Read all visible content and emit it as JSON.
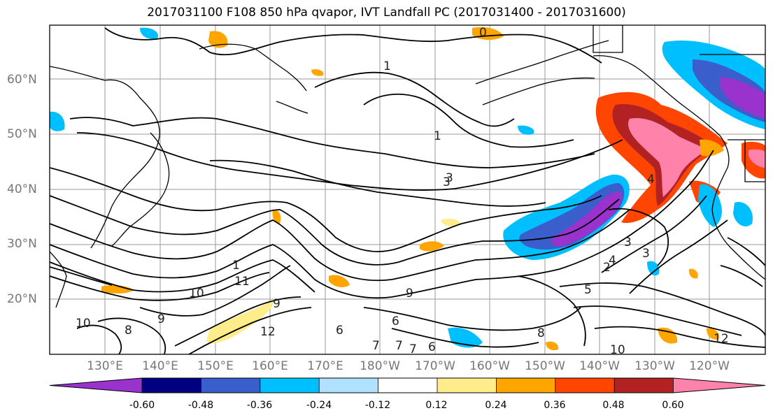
{
  "title": "2017031100 F108 850 hPa qvapor, IVT Landfall PC (2017031400 - 2017031600)",
  "lat_labels": [
    "60°N",
    "50°N",
    "40°N",
    "30°N",
    "20°N"
  ],
  "lon_labels": [
    "130°E",
    "140°E",
    "150°E",
    "160°E",
    "170°E",
    "180°W",
    "170°W",
    "160°W",
    "150°W",
    "140°W",
    "130°W",
    "120°W"
  ],
  "colorbar": {
    "ticks": [
      "-0.60",
      "-0.48",
      "-0.36",
      "-0.24",
      "-0.12",
      "0.12",
      "0.24",
      "0.36",
      "0.48",
      "0.60"
    ],
    "colors": [
      "#9a32cd",
      "#000080",
      "#3a5fcd",
      "#00bfff",
      "#b0e2ff",
      "#ffffff",
      "#ffec8b",
      "#ffa500",
      "#ff4500",
      "#b22222",
      "#ff82ab"
    ]
  },
  "contour_labels": [
    "0",
    "1",
    "1",
    "1",
    "3",
    "3",
    "3",
    "3",
    "4",
    "4",
    "2",
    "5",
    "6",
    "7",
    "7",
    "8",
    "8",
    "9",
    "9",
    "10",
    "10",
    "10",
    "11",
    "12",
    "12",
    "9",
    "6",
    "7",
    "6"
  ]
}
